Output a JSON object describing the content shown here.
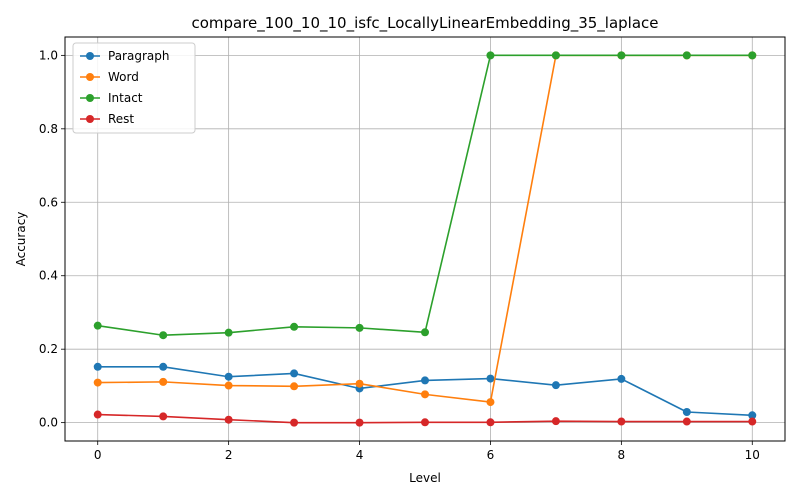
{
  "chart_data": {
    "type": "line",
    "title": "compare_100_10_10_isfc_LocallyLinearEmbedding_35_laplace",
    "xlabel": "Level",
    "ylabel": "Accuracy",
    "xlim": [
      -0.5,
      10.5
    ],
    "ylim": [
      -0.05,
      1.05
    ],
    "xticks": [
      0,
      2,
      4,
      6,
      8,
      10
    ],
    "xtick_labels": [
      "0",
      "2",
      "4",
      "6",
      "8",
      "10"
    ],
    "yticks": [
      0.0,
      0.2,
      0.4,
      0.6,
      0.8,
      1.0
    ],
    "ytick_labels": [
      "0.0",
      "0.2",
      "0.4",
      "0.6",
      "0.8",
      "1.0"
    ],
    "grid": true,
    "legend_position": "upper left",
    "x": [
      0,
      1,
      2,
      3,
      4,
      5,
      6,
      7,
      8,
      9,
      10
    ],
    "series": [
      {
        "name": "Paragraph",
        "color": "#1f77b4",
        "values": [
          0.152,
          0.152,
          0.125,
          0.134,
          0.093,
          0.115,
          0.12,
          0.102,
          0.119,
          0.029,
          0.02
        ]
      },
      {
        "name": "Word",
        "color": "#ff7f0e",
        "values": [
          0.109,
          0.111,
          0.101,
          0.099,
          0.106,
          0.077,
          0.056,
          1.0,
          1.0,
          1.0,
          1.0
        ]
      },
      {
        "name": "Intact",
        "color": "#2ca02c",
        "values": [
          0.264,
          0.238,
          0.245,
          0.261,
          0.258,
          0.246,
          1.0,
          1.0,
          1.0,
          1.0,
          1.0
        ]
      },
      {
        "name": "Rest",
        "color": "#d62728",
        "values": [
          0.022,
          0.017,
          0.008,
          0.0,
          0.0,
          0.001,
          0.001,
          0.004,
          0.003,
          0.003,
          0.003
        ]
      }
    ]
  }
}
